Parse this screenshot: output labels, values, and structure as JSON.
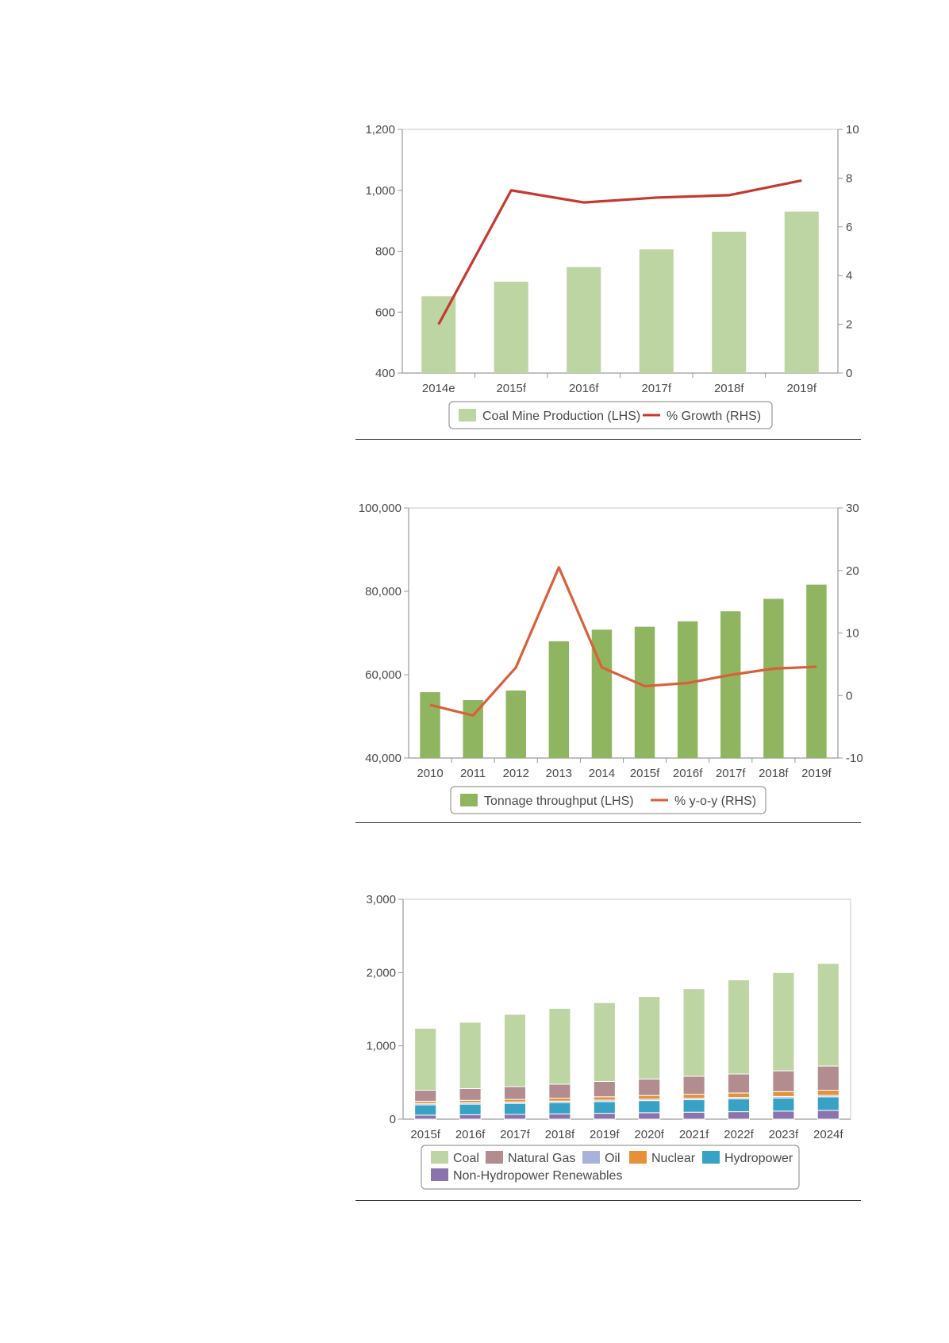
{
  "colors": {
    "bar_light_green": "#bdd4a3",
    "bar_green": "#8fb560",
    "line_red": "#c43a2e",
    "line_orange": "#d9603a",
    "axis": "#9a9a9a",
    "coal": "#bdd4a3",
    "natural_gas": "#b28c8e",
    "oil": "#a9b2d9",
    "nuclear": "#e69138",
    "hydropower": "#38a2c4",
    "non_hydro": "#8b73ad"
  },
  "chart_data": [
    {
      "type": "bar",
      "categories": [
        "2014e",
        "2015f",
        "2016f",
        "2017f",
        "2018f",
        "2019f"
      ],
      "series": [
        {
          "name": "Coal Mine Production (LHS)",
          "type": "bar",
          "axis": "left",
          "values": [
            652,
            700,
            748,
            806,
            864,
            930
          ]
        },
        {
          "name": "% Growth (RHS)",
          "type": "line",
          "axis": "right",
          "values": [
            2.0,
            7.5,
            7.0,
            7.2,
            7.3,
            7.9
          ]
        }
      ],
      "y_left": {
        "ylim": [
          400,
          1200
        ],
        "ticks": [
          "400",
          "600",
          "800",
          "1,000",
          "1,200"
        ]
      },
      "y_right": {
        "ylim": [
          0,
          10
        ],
        "ticks": [
          "0",
          "2",
          "4",
          "6",
          "8",
          "10"
        ]
      },
      "legend": {
        "position": "bottom",
        "labels": [
          "Coal Mine Production (LHS)",
          "% Growth (RHS)"
        ]
      },
      "grid": false
    },
    {
      "type": "bar",
      "categories": [
        "2010",
        "2011",
        "2012",
        "2013",
        "2014",
        "2015f",
        "2016f",
        "2017f",
        "2018f",
        "2019f"
      ],
      "series": [
        {
          "name": "Tonnage throughput (LHS)",
          "type": "bar",
          "axis": "left",
          "values": [
            55800,
            53900,
            56200,
            68000,
            70800,
            71500,
            72800,
            75200,
            78200,
            81600
          ]
        },
        {
          "name": "% y-o-y (RHS)",
          "type": "line",
          "axis": "right",
          "values": [
            -1.5,
            -3.2,
            4.5,
            20.5,
            4.5,
            1.5,
            2.0,
            3.3,
            4.3,
            4.6
          ]
        }
      ],
      "y_left": {
        "ylim": [
          40000,
          100000
        ],
        "ticks": [
          "40,000",
          "60,000",
          "80,000",
          "100,000"
        ]
      },
      "y_right": {
        "ylim": [
          -10,
          30
        ],
        "ticks": [
          "-10",
          "0",
          "10",
          "20",
          "30"
        ]
      },
      "legend": {
        "position": "bottom",
        "labels": [
          "Tonnage throughput (LHS)",
          "% y-o-y (RHS)"
        ]
      },
      "grid": false
    },
    {
      "type": "bar",
      "stacked": true,
      "categories": [
        "2015f",
        "2016f",
        "2017f",
        "2018f",
        "2019f",
        "2020f",
        "2021f",
        "2022f",
        "2023f",
        "2024f"
      ],
      "series": [
        {
          "name": "Non-Hydropower Renewables",
          "color_key": "non_hydro",
          "values": [
            55,
            60,
            65,
            72,
            80,
            88,
            95,
            102,
            110,
            120
          ]
        },
        {
          "name": "Hydropower",
          "color_key": "hydropower",
          "values": [
            140,
            145,
            150,
            155,
            160,
            165,
            170,
            175,
            180,
            185
          ]
        },
        {
          "name": "Oil",
          "color_key": "oil",
          "values": [
            20,
            20,
            20,
            20,
            20,
            20,
            20,
            20,
            20,
            20
          ]
        },
        {
          "name": "Nuclear",
          "color_key": "nuclear",
          "values": [
            30,
            32,
            35,
            40,
            45,
            50,
            55,
            60,
            65,
            70
          ]
        },
        {
          "name": "Natural Gas",
          "color_key": "natural_gas",
          "values": [
            150,
            160,
            175,
            190,
            210,
            225,
            245,
            260,
            285,
            330
          ]
        },
        {
          "name": "Coal",
          "color_key": "coal",
          "values": [
            845,
            905,
            985,
            1035,
            1075,
            1125,
            1195,
            1283,
            1340,
            1400
          ]
        }
      ],
      "ylim": [
        0,
        3000
      ],
      "ticks": [
        "0",
        "1,000",
        "2,000",
        "3,000"
      ],
      "legend": {
        "position": "bottom",
        "labels": [
          "Coal",
          "Natural Gas",
          "Oil",
          "Nuclear",
          "Hydropower",
          "Non-Hydropower Renewables"
        ]
      },
      "grid": false
    }
  ]
}
